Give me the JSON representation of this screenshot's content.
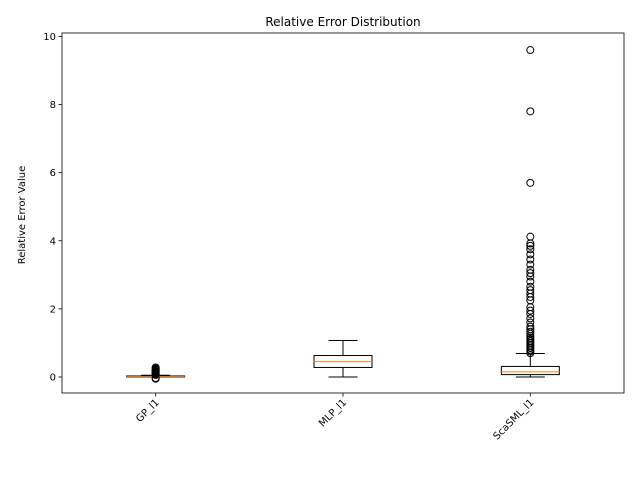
{
  "chart_data": {
    "type": "boxplot",
    "title": "Relative Error Distribution",
    "xlabel": "",
    "ylabel": "Relative Error Value",
    "ylim": [
      -0.47,
      10.1
    ],
    "yticks": [
      0,
      2,
      4,
      6,
      8,
      10
    ],
    "ytick_labels": [
      "0",
      "2",
      "4",
      "6",
      "8",
      "10"
    ],
    "grid": false,
    "categories": [
      "GP_l1",
      "MLP_l1",
      "ScaSML_l1"
    ],
    "box_color": "#000000",
    "median_color": "#ff7f0e",
    "boxes": [
      {
        "name": "GP_l1",
        "whisker_low": 0.0,
        "q1": 0.0,
        "median": 0.01,
        "q3": 0.03,
        "whisker_high": 0.05,
        "outliers": [
          -0.05,
          -0.03,
          0.06,
          0.08,
          0.1,
          0.12,
          0.14,
          0.16,
          0.18,
          0.2,
          0.22,
          0.25,
          0.28
        ]
      },
      {
        "name": "MLP_l1",
        "whisker_low": 0.0,
        "q1": 0.28,
        "median": 0.45,
        "q3": 0.63,
        "whisker_high": 1.07,
        "outliers": []
      },
      {
        "name": "ScaSML_l1",
        "whisker_low": 0.0,
        "q1": 0.07,
        "median": 0.15,
        "q3": 0.31,
        "whisker_high": 0.69,
        "outliers": [
          0.7,
          0.75,
          0.8,
          0.85,
          0.9,
          0.95,
          1.0,
          1.05,
          1.1,
          1.15,
          1.2,
          1.27,
          1.33,
          1.4,
          1.48,
          1.6,
          1.72,
          1.85,
          1.95,
          2.05,
          2.25,
          2.35,
          2.45,
          2.55,
          2.65,
          2.8,
          2.95,
          3.05,
          3.15,
          3.3,
          3.45,
          3.6,
          3.75,
          3.85,
          3.92,
          4.12,
          5.7,
          7.8,
          9.6
        ]
      }
    ]
  }
}
